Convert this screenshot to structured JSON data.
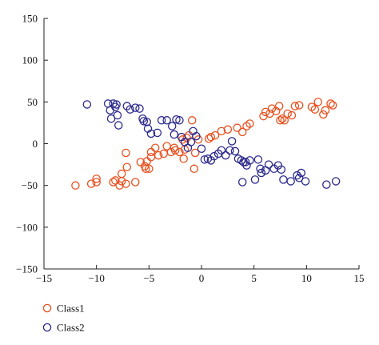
{
  "chart_data": {
    "type": "scatter",
    "title": "",
    "xlabel": "",
    "ylabel": "",
    "xlim": [
      -15,
      15
    ],
    "ylim": [
      -150,
      150
    ],
    "xticks": [
      -15,
      -10,
      -5,
      0,
      5,
      10,
      15
    ],
    "yticks": [
      150,
      100,
      50,
      0,
      -50,
      -100,
      -150
    ],
    "xtick_labels": [
      "−15",
      "−10",
      "−5",
      "0",
      "5",
      "10",
      "15"
    ],
    "ytick_labels": [
      "150",
      "100",
      "50",
      "0",
      "−50",
      "−100",
      "−150"
    ],
    "grid": false,
    "legend_position": "bottom-left",
    "marker": "open-circle",
    "series": [
      {
        "name": "Class1",
        "color": "#e8501e",
        "points": [
          [
            -12,
            -50
          ],
          [
            -10.5,
            -48
          ],
          [
            -10,
            -46
          ],
          [
            -10,
            -42
          ],
          [
            -8.4,
            -46
          ],
          [
            -8.2,
            -44
          ],
          [
            -7.8,
            -50
          ],
          [
            -7.6,
            -45
          ],
          [
            -7.2,
            -48
          ],
          [
            -7.6,
            -36
          ],
          [
            -7.1,
            -28
          ],
          [
            -7.2,
            -11
          ],
          [
            -6.3,
            -46
          ],
          [
            -5.8,
            -22
          ],
          [
            -5.4,
            -27
          ],
          [
            -5.3,
            -30
          ],
          [
            -5,
            -30
          ],
          [
            -5.2,
            -21
          ],
          [
            -4.8,
            -16
          ],
          [
            -4.8,
            -10
          ],
          [
            -4.4,
            -5
          ],
          [
            -4.1,
            -14
          ],
          [
            -3.6,
            -12
          ],
          [
            -3.3,
            -3
          ],
          [
            -2.9,
            -10
          ],
          [
            -2.6,
            -5
          ],
          [
            -2.5,
            -8
          ],
          [
            -2.1,
            -10
          ],
          [
            -1.8,
            5
          ],
          [
            -1.7,
            -18
          ],
          [
            -1.6,
            -7
          ],
          [
            -1.4,
            7
          ],
          [
            -1.2,
            10
          ],
          [
            -0.9,
            28
          ],
          [
            -0.7,
            -30
          ],
          [
            -0.6,
            -11
          ],
          [
            -0.3,
            5
          ],
          [
            0.7,
            6
          ],
          [
            0.9,
            8
          ],
          [
            1.3,
            10
          ],
          [
            1.9,
            15
          ],
          [
            2.5,
            17
          ],
          [
            3.4,
            19
          ],
          [
            3.9,
            14
          ],
          [
            4.3,
            21
          ],
          [
            4.6,
            24
          ],
          [
            5.9,
            33
          ],
          [
            6.1,
            38
          ],
          [
            6.5,
            36
          ],
          [
            6.7,
            42
          ],
          [
            7.1,
            39
          ],
          [
            7.4,
            45
          ],
          [
            7.5,
            28
          ],
          [
            7.7,
            30
          ],
          [
            7.9,
            28
          ],
          [
            8.2,
            36
          ],
          [
            8.6,
            34
          ],
          [
            8.9,
            45
          ],
          [
            9.3,
            46
          ],
          [
            10.5,
            44
          ],
          [
            10.8,
            41
          ],
          [
            11.1,
            50
          ],
          [
            11.6,
            35
          ],
          [
            11.8,
            40
          ],
          [
            12.3,
            48
          ],
          [
            12.5,
            46
          ]
        ]
      },
      {
        "name": "Class2",
        "color": "#2c2a8c",
        "points": [
          [
            -10.9,
            47
          ],
          [
            -8.9,
            48
          ],
          [
            -8.7,
            40
          ],
          [
            -8.6,
            30
          ],
          [
            -8.4,
            48
          ],
          [
            -8.2,
            44
          ],
          [
            -8.1,
            47
          ],
          [
            -8,
            34
          ],
          [
            -7.9,
            22
          ],
          [
            -7.1,
            45
          ],
          [
            -6.8,
            41
          ],
          [
            -6.3,
            43
          ],
          [
            -5.9,
            42
          ],
          [
            -5.6,
            30
          ],
          [
            -5.5,
            27
          ],
          [
            -5.2,
            26
          ],
          [
            -5.1,
            18
          ],
          [
            -4.8,
            12
          ],
          [
            -4.2,
            13
          ],
          [
            -3.8,
            28
          ],
          [
            -3.3,
            28
          ],
          [
            -2.8,
            21
          ],
          [
            -2.6,
            11
          ],
          [
            -2.4,
            29
          ],
          [
            -2.1,
            28
          ],
          [
            -1.9,
            8
          ],
          [
            -1.6,
            2
          ],
          [
            -1.3,
            -5
          ],
          [
            -1,
            2
          ],
          [
            -0.8,
            15
          ],
          [
            -0.5,
            9
          ],
          [
            0,
            -6
          ],
          [
            0.3,
            -19
          ],
          [
            0.6,
            -18
          ],
          [
            0.9,
            -20
          ],
          [
            1.2,
            -15
          ],
          [
            1.6,
            -12
          ],
          [
            1.9,
            -8
          ],
          [
            2.3,
            -14
          ],
          [
            2.7,
            -8
          ],
          [
            2.9,
            3
          ],
          [
            3.2,
            -9
          ],
          [
            3.5,
            -18
          ],
          [
            3.8,
            -20
          ],
          [
            4,
            -22
          ],
          [
            4.2,
            -22
          ],
          [
            4.3,
            -26
          ],
          [
            4.6,
            -20
          ],
          [
            3.9,
            -46
          ],
          [
            5.1,
            -43
          ],
          [
            5.4,
            -19
          ],
          [
            5.6,
            -30
          ],
          [
            5.7,
            -35
          ],
          [
            6.1,
            -32
          ],
          [
            6.4,
            -25
          ],
          [
            6.9,
            -30
          ],
          [
            7.3,
            -26
          ],
          [
            7.6,
            -31
          ],
          [
            7.8,
            -43
          ],
          [
            8.5,
            -45
          ],
          [
            9.1,
            -38
          ],
          [
            9.3,
            -41
          ],
          [
            9.5,
            -35
          ],
          [
            9.9,
            -45
          ],
          [
            11.9,
            -49
          ],
          [
            12.8,
            -45
          ]
        ]
      }
    ]
  }
}
